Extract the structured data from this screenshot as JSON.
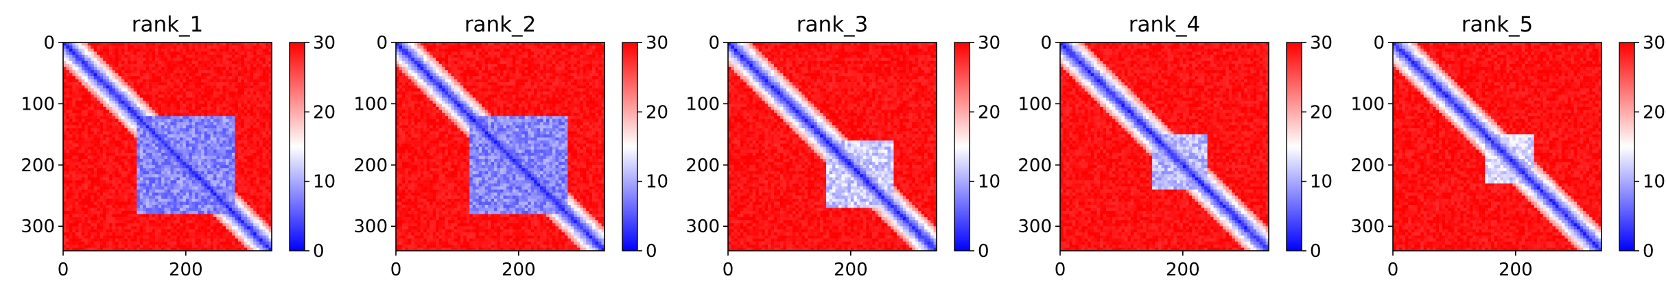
{
  "chart_data": {
    "type": "heatmap",
    "description_of_panels": "five pairwise predicted aligned error maps",
    "colormap": [
      "#0000ff",
      "#ffffff",
      "#ff0000"
    ],
    "colorbar": {
      "range": [
        0,
        30
      ],
      "ticks": [
        0,
        10,
        20,
        30
      ]
    },
    "matrix_size": 340,
    "x_ticks": [
      0,
      200
    ],
    "y_ticks": [
      0,
      100,
      200,
      300
    ],
    "panels": [
      {
        "title": "rank_1",
        "box": [
          120,
          280
        ],
        "box_value": 8,
        "diagonal_value": 1
      },
      {
        "title": "rank_2",
        "box": [
          120,
          280
        ],
        "box_value": 8,
        "diagonal_value": 1
      },
      {
        "title": "rank_3",
        "box": [
          160,
          270
        ],
        "box_value": 12,
        "diagonal_value": 1
      },
      {
        "title": "rank_4",
        "box": [
          150,
          240
        ],
        "box_value": 11,
        "diagonal_value": 1
      },
      {
        "title": "rank_5",
        "box": [
          150,
          230
        ],
        "box_value": 13,
        "diagonal_value": 1
      }
    ]
  }
}
